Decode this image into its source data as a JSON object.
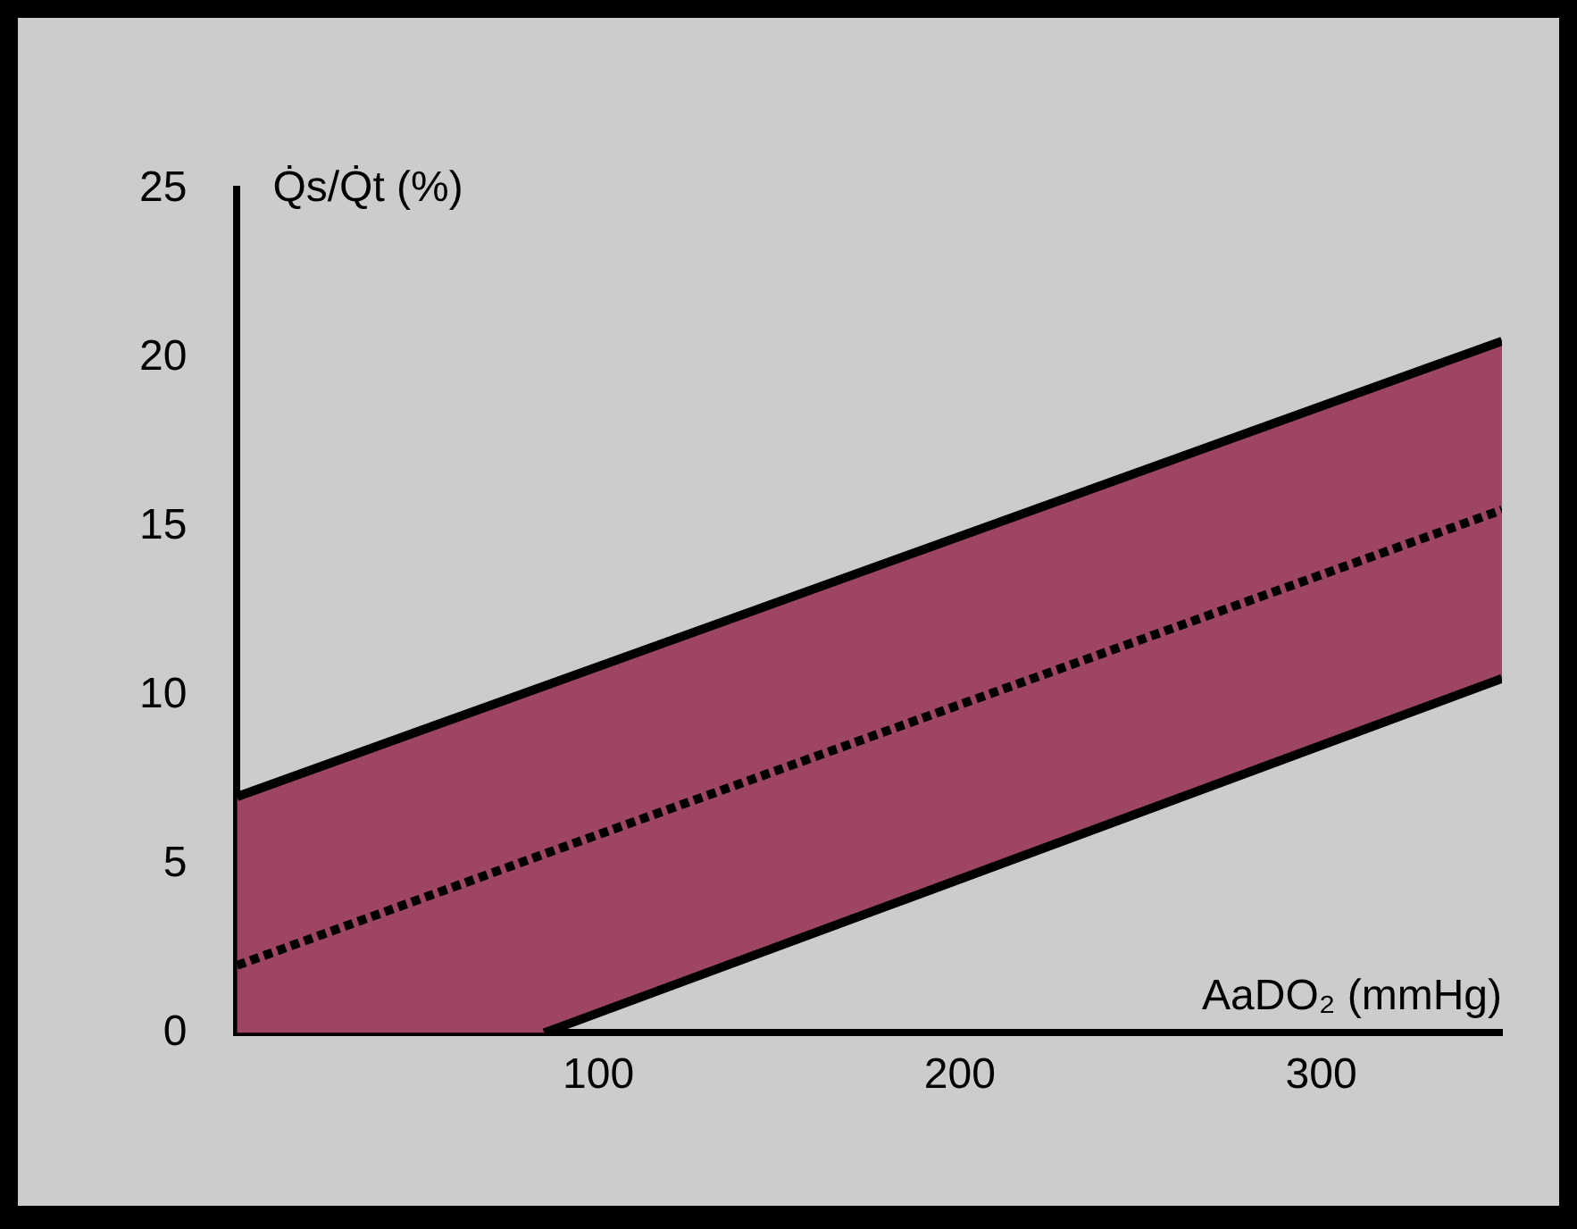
{
  "chart_data": {
    "type": "line",
    "xlabel": "AaDO₂ (mmHg)",
    "ylabel": "Q̇s/Q̇t (%)",
    "xlim": [
      0,
      350
    ],
    "xticks": [
      100,
      200,
      300
    ],
    "ylim": [
      0,
      25
    ],
    "yticks": [
      0,
      5,
      10,
      15,
      20,
      25
    ],
    "series": [
      {
        "type": "line",
        "color": "#000000",
        "x": [
          0,
          85,
          350
        ],
        "values": [
          2,
          5.3,
          15.5
        ],
        "lower": [
          0,
          0,
          10.5
        ],
        "upper": [
          7,
          10.3,
          20.5
        ],
        "line_style": "dashed"
      },
      {
        "type": "line",
        "color": "#000000",
        "x": [
          0,
          350
        ],
        "values": [
          7,
          20.5
        ],
        "line_style": "solid"
      },
      {
        "type": "line",
        "color": "#000000",
        "x": [
          85,
          350
        ],
        "values": [
          0,
          10.5
        ],
        "line_style": "solid"
      }
    ]
  }
}
